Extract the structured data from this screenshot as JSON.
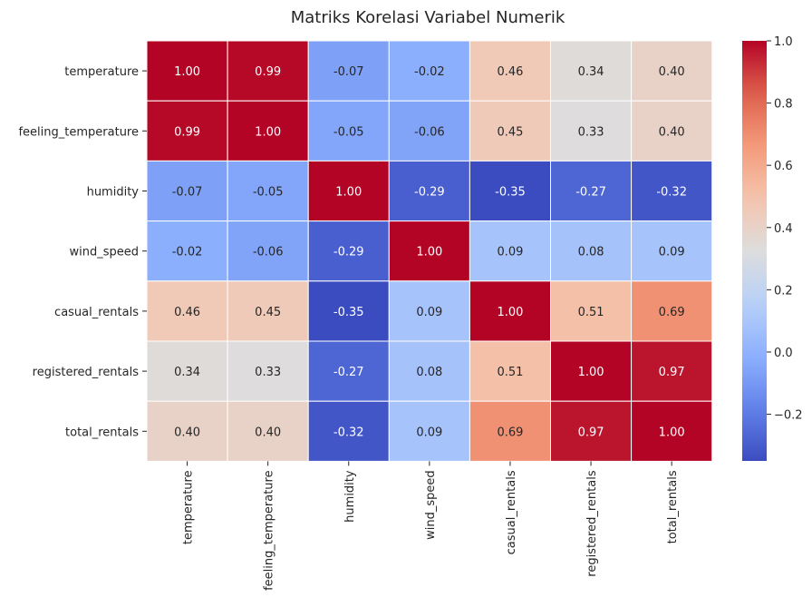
{
  "chart_data": {
    "type": "heatmap",
    "title": "Matriks Korelasi Variabel Numerik",
    "rows": [
      "temperature",
      "feeling_temperature",
      "humidity",
      "wind_speed",
      "casual_rentals",
      "registered_rentals",
      "total_rentals"
    ],
    "columns": [
      "temperature",
      "feeling_temperature",
      "humidity",
      "wind_speed",
      "casual_rentals",
      "registered_rentals",
      "total_rentals"
    ],
    "values": [
      [
        1.0,
        0.99,
        -0.07,
        -0.02,
        0.46,
        0.34,
        0.4
      ],
      [
        0.99,
        1.0,
        -0.05,
        -0.06,
        0.45,
        0.33,
        0.4
      ],
      [
        -0.07,
        -0.05,
        1.0,
        -0.29,
        -0.35,
        -0.27,
        -0.32
      ],
      [
        -0.02,
        -0.06,
        -0.29,
        1.0,
        0.09,
        0.08,
        0.09
      ],
      [
        0.46,
        0.45,
        -0.35,
        0.09,
        1.0,
        0.51,
        0.69
      ],
      [
        0.34,
        0.33,
        -0.27,
        0.08,
        0.51,
        1.0,
        0.97
      ],
      [
        0.4,
        0.4,
        -0.32,
        0.09,
        0.69,
        0.97,
        1.0
      ]
    ],
    "labels": [
      [
        "1.00",
        "0.99",
        "-0.07",
        "-0.02",
        "0.46",
        "0.34",
        "0.40"
      ],
      [
        "0.99",
        "1.00",
        "-0.05",
        "-0.06",
        "0.45",
        "0.33",
        "0.40"
      ],
      [
        "-0.07",
        "-0.05",
        "1.00",
        "-0.29",
        "-0.35",
        "-0.27",
        "-0.32"
      ],
      [
        "-0.02",
        "-0.06",
        "-0.29",
        "1.00",
        "0.09",
        "0.08",
        "0.09"
      ],
      [
        "0.46",
        "0.45",
        "-0.35",
        "0.09",
        "1.00",
        "0.51",
        "0.69"
      ],
      [
        "0.34",
        "0.33",
        "-0.27",
        "0.08",
        "0.51",
        "1.00",
        "0.97"
      ],
      [
        "0.40",
        "0.40",
        "-0.32",
        "0.09",
        "0.69",
        "0.97",
        "1.00"
      ]
    ],
    "colormap": "coolwarm",
    "color_range": [
      -0.35,
      1.0
    ],
    "colorbar_ticks": [
      1.0,
      0.8,
      0.6,
      0.4,
      0.2,
      0.0,
      -0.2
    ],
    "colorbar_tick_labels": [
      "1.0",
      "0.8",
      "0.6",
      "0.4",
      "0.2",
      "0.0",
      "−0.2"
    ],
    "grid": true,
    "grid_color": "#ffffff",
    "legend": "colorbar-right"
  }
}
